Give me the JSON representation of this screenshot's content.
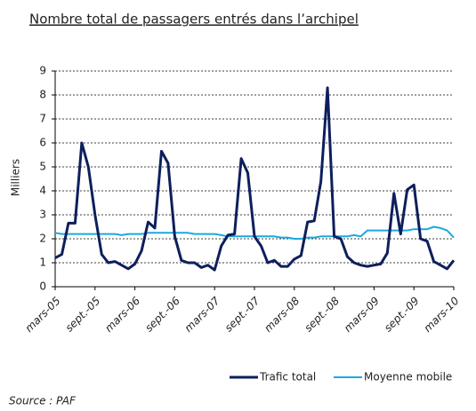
{
  "chart_data": {
    "type": "line",
    "title": "Nombre total de passagers entrés dans l’archipel",
    "y_label": "Milliers",
    "source": "Source : PAF",
    "categories": [
      "mars-05",
      null,
      null,
      null,
      null,
      null,
      "sept.-05",
      null,
      null,
      null,
      null,
      null,
      "mars-06",
      null,
      null,
      null,
      null,
      null,
      "sept.-06",
      null,
      null,
      null,
      null,
      null,
      "mars-07",
      null,
      null,
      null,
      null,
      null,
      "sept.-07",
      null,
      null,
      null,
      null,
      null,
      "mars-08",
      null,
      null,
      null,
      null,
      null,
      "sept.-08",
      null,
      null,
      null,
      null,
      null,
      "mars-09",
      null,
      null,
      null,
      null,
      null,
      "sept.-09",
      null,
      null,
      null,
      null,
      null,
      "mars-10"
    ],
    "series": [
      {
        "name": "Trafic total",
        "color": "#0d1f5c",
        "values": [
          1.2,
          1.35,
          2.65,
          2.65,
          6.0,
          5.0,
          3.0,
          1.35,
          1.0,
          1.05,
          0.9,
          0.75,
          0.95,
          1.5,
          2.7,
          2.45,
          5.65,
          5.15,
          2.1,
          1.1,
          1.0,
          1.0,
          0.8,
          0.9,
          0.7,
          1.7,
          2.15,
          2.2,
          5.35,
          4.75,
          2.1,
          1.7,
          1.0,
          1.1,
          0.85,
          0.85,
          1.15,
          1.3,
          2.7,
          2.75,
          4.4,
          8.3,
          2.1,
          2.0,
          1.25,
          1.0,
          0.9,
          0.85,
          0.9,
          0.95,
          1.4,
          3.9,
          2.2,
          4.05,
          4.25,
          2.0,
          1.9,
          1.05,
          0.9,
          0.75,
          1.1
        ]
      },
      {
        "name": "Moyenne mobile",
        "color": "#19a9e1",
        "values": [
          2.25,
          2.2,
          2.2,
          2.2,
          2.2,
          2.2,
          2.2,
          2.2,
          2.2,
          2.2,
          2.15,
          2.2,
          2.2,
          2.2,
          2.25,
          2.25,
          2.25,
          2.25,
          2.25,
          2.25,
          2.25,
          2.2,
          2.2,
          2.2,
          2.2,
          2.15,
          2.1,
          2.1,
          2.1,
          2.1,
          2.1,
          2.1,
          2.1,
          2.1,
          2.05,
          2.05,
          2.0,
          2.0,
          2.05,
          2.05,
          2.1,
          2.1,
          2.1,
          2.1,
          2.1,
          2.15,
          2.1,
          2.35,
          2.35,
          2.35,
          2.35,
          2.35,
          2.35,
          2.35,
          2.4,
          2.4,
          2.4,
          2.5,
          2.45,
          2.35,
          2.05
        ]
      }
    ],
    "ylim": [
      0,
      9
    ],
    "yticks": [
      0,
      1,
      2,
      3,
      4,
      5,
      6,
      7,
      8,
      9
    ],
    "grid": true
  }
}
